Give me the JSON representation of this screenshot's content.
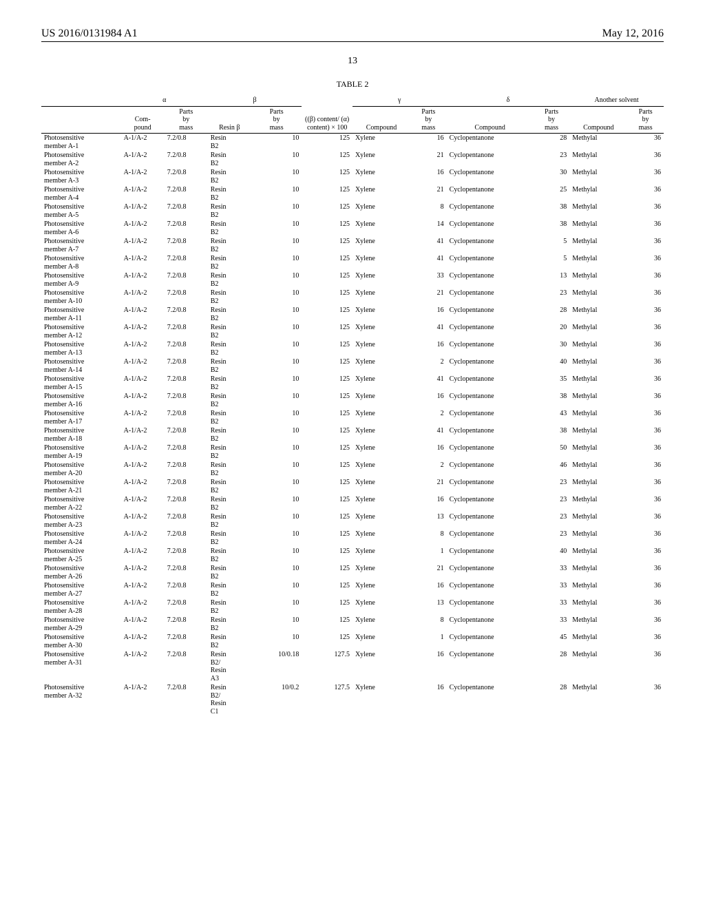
{
  "header": {
    "pub_number": "US 2016/0131984 A1",
    "pub_date": "May 12, 2016"
  },
  "page_number": "13",
  "table": {
    "label": "TABLE 2",
    "group_headers": {
      "blank": "",
      "alpha": "α",
      "beta": "β",
      "ratio": "((β)\ncontent/\n(α)\ncontent) ×\n100",
      "gamma": "γ",
      "delta": "δ",
      "another": "Another solvent"
    },
    "sub_headers": {
      "compound_a": "Com-\npound",
      "parts_a": "Parts\nby\nmass",
      "resin_b": "Resin β",
      "parts_b": "Parts\nby\nmass",
      "compound_g": "Compound",
      "parts_g": "Parts\nby\nmass",
      "compound_d": "Compound",
      "parts_d": "Parts\nby\nmass",
      "compound_s": "Compound",
      "parts_s": "Parts\nby\nmass"
    },
    "rows": [
      {
        "label": "Photosensitive\nmember A-1",
        "ca": "A-1/A-2",
        "pa": "7.2/0.8",
        "rb": "Resin\nB2",
        "pb": "10",
        "ratio": "125",
        "cg": "Xylene",
        "pg": "16",
        "cd": "Cyclopentanone",
        "pd": "28",
        "cs": "Methylal",
        "ps": "36"
      },
      {
        "label": "Photosensitive\nmember A-2",
        "ca": "A-1/A-2",
        "pa": "7.2/0.8",
        "rb": "Resin\nB2",
        "pb": "10",
        "ratio": "125",
        "cg": "Xylene",
        "pg": "21",
        "cd": "Cyclopentanone",
        "pd": "23",
        "cs": "Methylal",
        "ps": "36"
      },
      {
        "label": "Photosensitive\nmember A-3",
        "ca": "A-1/A-2",
        "pa": "7.2/0.8",
        "rb": "Resin\nB2",
        "pb": "10",
        "ratio": "125",
        "cg": "Xylene",
        "pg": "16",
        "cd": "Cyclopentanone",
        "pd": "30",
        "cs": "Methylal",
        "ps": "36"
      },
      {
        "label": "Photosensitive\nmember A-4",
        "ca": "A-1/A-2",
        "pa": "7.2/0.8",
        "rb": "Resin\nB2",
        "pb": "10",
        "ratio": "125",
        "cg": "Xylene",
        "pg": "21",
        "cd": "Cyclopentanone",
        "pd": "25",
        "cs": "Methylal",
        "ps": "36"
      },
      {
        "label": "Photosensitive\nmember A-5",
        "ca": "A-1/A-2",
        "pa": "7.2/0.8",
        "rb": "Resin\nB2",
        "pb": "10",
        "ratio": "125",
        "cg": "Xylene",
        "pg": "8",
        "cd": "Cyclopentanone",
        "pd": "38",
        "cs": "Methylal",
        "ps": "36"
      },
      {
        "label": "Photosensitive\nmember A-6",
        "ca": "A-1/A-2",
        "pa": "7.2/0.8",
        "rb": "Resin\nB2",
        "pb": "10",
        "ratio": "125",
        "cg": "Xylene",
        "pg": "14",
        "cd": "Cyclopentanone",
        "pd": "38",
        "cs": "Methylal",
        "ps": "36"
      },
      {
        "label": "Photosensitive\nmember A-7",
        "ca": "A-1/A-2",
        "pa": "7.2/0.8",
        "rb": "Resin\nB2",
        "pb": "10",
        "ratio": "125",
        "cg": "Xylene",
        "pg": "41",
        "cd": "Cyclopentanone",
        "pd": "5",
        "cs": "Methylal",
        "ps": "36"
      },
      {
        "label": "Photosensitive\nmember A-8",
        "ca": "A-1/A-2",
        "pa": "7.2/0.8",
        "rb": "Resin\nB2",
        "pb": "10",
        "ratio": "125",
        "cg": "Xylene",
        "pg": "41",
        "cd": "Cyclopentanone",
        "pd": "5",
        "cs": "Methylal",
        "ps": "36"
      },
      {
        "label": "Photosensitive\nmember A-9",
        "ca": "A-1/A-2",
        "pa": "7.2/0.8",
        "rb": "Resin\nB2",
        "pb": "10",
        "ratio": "125",
        "cg": "Xylene",
        "pg": "33",
        "cd": "Cyclopentanone",
        "pd": "13",
        "cs": "Methylal",
        "ps": "36"
      },
      {
        "label": "Photosensitive\nmember A-10",
        "ca": "A-1/A-2",
        "pa": "7.2/0.8",
        "rb": "Resin\nB2",
        "pb": "10",
        "ratio": "125",
        "cg": "Xylene",
        "pg": "21",
        "cd": "Cyclopentanone",
        "pd": "23",
        "cs": "Methylal",
        "ps": "36"
      },
      {
        "label": "Photosensitive\nmember A-11",
        "ca": "A-1/A-2",
        "pa": "7.2/0.8",
        "rb": "Resin\nB2",
        "pb": "10",
        "ratio": "125",
        "cg": "Xylene",
        "pg": "16",
        "cd": "Cyclopentanone",
        "pd": "28",
        "cs": "Methylal",
        "ps": "36"
      },
      {
        "label": "Photosensitive\nmember A-12",
        "ca": "A-1/A-2",
        "pa": "7.2/0.8",
        "rb": "Resin\nB2",
        "pb": "10",
        "ratio": "125",
        "cg": "Xylene",
        "pg": "41",
        "cd": "Cyclopentanone",
        "pd": "20",
        "cs": "Methylal",
        "ps": "36"
      },
      {
        "label": "Photosensitive\nmember A-13",
        "ca": "A-1/A-2",
        "pa": "7.2/0.8",
        "rb": "Resin\nB2",
        "pb": "10",
        "ratio": "125",
        "cg": "Xylene",
        "pg": "16",
        "cd": "Cyclopentanone",
        "pd": "30",
        "cs": "Methylal",
        "ps": "36"
      },
      {
        "label": "Photosensitive\nmember A-14",
        "ca": "A-1/A-2",
        "pa": "7.2/0.8",
        "rb": "Resin\nB2",
        "pb": "10",
        "ratio": "125",
        "cg": "Xylene",
        "pg": "2",
        "cd": "Cyclopentanone",
        "pd": "40",
        "cs": "Methylal",
        "ps": "36"
      },
      {
        "label": "Photosensitive\nmember A-15",
        "ca": "A-1/A-2",
        "pa": "7.2/0.8",
        "rb": "Resin\nB2",
        "pb": "10",
        "ratio": "125",
        "cg": "Xylene",
        "pg": "41",
        "cd": "Cyclopentanone",
        "pd": "35",
        "cs": "Methylal",
        "ps": "36"
      },
      {
        "label": "Photosensitive\nmember A-16",
        "ca": "A-1/A-2",
        "pa": "7.2/0.8",
        "rb": "Resin\nB2",
        "pb": "10",
        "ratio": "125",
        "cg": "Xylene",
        "pg": "16",
        "cd": "Cyclopentanone",
        "pd": "38",
        "cs": "Methylal",
        "ps": "36"
      },
      {
        "label": "Photosensitive\nmember A-17",
        "ca": "A-1/A-2",
        "pa": "7.2/0.8",
        "rb": "Resin\nB2",
        "pb": "10",
        "ratio": "125",
        "cg": "Xylene",
        "pg": "2",
        "cd": "Cyclopentanone",
        "pd": "43",
        "cs": "Methylal",
        "ps": "36"
      },
      {
        "label": "Photosensitive\nmember A-18",
        "ca": "A-1/A-2",
        "pa": "7.2/0.8",
        "rb": "Resin\nB2",
        "pb": "10",
        "ratio": "125",
        "cg": "Xylene",
        "pg": "41",
        "cd": "Cyclopentanone",
        "pd": "38",
        "cs": "Methylal",
        "ps": "36"
      },
      {
        "label": "Photosensitive\nmember A-19",
        "ca": "A-1/A-2",
        "pa": "7.2/0.8",
        "rb": "Resin\nB2",
        "pb": "10",
        "ratio": "125",
        "cg": "Xylene",
        "pg": "16",
        "cd": "Cyclopentanone",
        "pd": "50",
        "cs": "Methylal",
        "ps": "36"
      },
      {
        "label": "Photosensitive\nmember A-20",
        "ca": "A-1/A-2",
        "pa": "7.2/0.8",
        "rb": "Resin\nB2",
        "pb": "10",
        "ratio": "125",
        "cg": "Xylene",
        "pg": "2",
        "cd": "Cyclopentanone",
        "pd": "46",
        "cs": "Methylal",
        "ps": "36"
      },
      {
        "label": "Photosensitive\nmember A-21",
        "ca": "A-1/A-2",
        "pa": "7.2/0.8",
        "rb": "Resin\nB2",
        "pb": "10",
        "ratio": "125",
        "cg": "Xylene",
        "pg": "21",
        "cd": "Cyclopentanone",
        "pd": "23",
        "cs": "Methylal",
        "ps": "36"
      },
      {
        "label": "Photosensitive\nmember A-22",
        "ca": "A-1/A-2",
        "pa": "7.2/0.8",
        "rb": "Resin\nB2",
        "pb": "10",
        "ratio": "125",
        "cg": "Xylene",
        "pg": "16",
        "cd": "Cyclopentanone",
        "pd": "23",
        "cs": "Methylal",
        "ps": "36"
      },
      {
        "label": "Photosensitive\nmember A-23",
        "ca": "A-1/A-2",
        "pa": "7.2/0.8",
        "rb": "Resin\nB2",
        "pb": "10",
        "ratio": "125",
        "cg": "Xylene",
        "pg": "13",
        "cd": "Cyclopentanone",
        "pd": "23",
        "cs": "Methylal",
        "ps": "36"
      },
      {
        "label": "Photosensitive\nmember A-24",
        "ca": "A-1/A-2",
        "pa": "7.2/0.8",
        "rb": "Resin\nB2",
        "pb": "10",
        "ratio": "125",
        "cg": "Xylene",
        "pg": "8",
        "cd": "Cyclopentanone",
        "pd": "23",
        "cs": "Methylal",
        "ps": "36"
      },
      {
        "label": "Photosensitive\nmember A-25",
        "ca": "A-1/A-2",
        "pa": "7.2/0.8",
        "rb": "Resin\nB2",
        "pb": "10",
        "ratio": "125",
        "cg": "Xylene",
        "pg": "1",
        "cd": "Cyclopentanone",
        "pd": "40",
        "cs": "Methylal",
        "ps": "36"
      },
      {
        "label": "Photosensitive\nmember A-26",
        "ca": "A-1/A-2",
        "pa": "7.2/0.8",
        "rb": "Resin\nB2",
        "pb": "10",
        "ratio": "125",
        "cg": "Xylene",
        "pg": "21",
        "cd": "Cyclopentanone",
        "pd": "33",
        "cs": "Methylal",
        "ps": "36"
      },
      {
        "label": "Photosensitive\nmember A-27",
        "ca": "A-1/A-2",
        "pa": "7.2/0.8",
        "rb": "Resin\nB2",
        "pb": "10",
        "ratio": "125",
        "cg": "Xylene",
        "pg": "16",
        "cd": "Cyclopentanone",
        "pd": "33",
        "cs": "Methylal",
        "ps": "36"
      },
      {
        "label": "Photosensitive\nmember A-28",
        "ca": "A-1/A-2",
        "pa": "7.2/0.8",
        "rb": "Resin\nB2",
        "pb": "10",
        "ratio": "125",
        "cg": "Xylene",
        "pg": "13",
        "cd": "Cyclopentanone",
        "pd": "33",
        "cs": "Methylal",
        "ps": "36"
      },
      {
        "label": "Photosensitive\nmember A-29",
        "ca": "A-1/A-2",
        "pa": "7.2/0.8",
        "rb": "Resin\nB2",
        "pb": "10",
        "ratio": "125",
        "cg": "Xylene",
        "pg": "8",
        "cd": "Cyclopentanone",
        "pd": "33",
        "cs": "Methylal",
        "ps": "36"
      },
      {
        "label": "Photosensitive\nmember A-30",
        "ca": "A-1/A-2",
        "pa": "7.2/0.8",
        "rb": "Resin\nB2",
        "pb": "10",
        "ratio": "125",
        "cg": "Xylene",
        "pg": "1",
        "cd": "Cyclopentanone",
        "pd": "45",
        "cs": "Methylal",
        "ps": "36"
      },
      {
        "label": "Photosensitive\nmember A-31",
        "ca": "A-1/A-2",
        "pa": "7.2/0.8",
        "rb": "Resin\nB2/\nResin\nA3",
        "pb": "10/0.18",
        "ratio": "127.5",
        "cg": "Xylene",
        "pg": "16",
        "cd": "Cyclopentanone",
        "pd": "28",
        "cs": "Methylal",
        "ps": "36"
      },
      {
        "label": "Photosensitive\nmember A-32",
        "ca": "A-1/A-2",
        "pa": "7.2/0.8",
        "rb": "Resin\nB2/\nResin\nC1",
        "pb": "10/0.2",
        "ratio": "127.5",
        "cg": "Xylene",
        "pg": "16",
        "cd": "Cyclopentanone",
        "pd": "28",
        "cs": "Methylal",
        "ps": "36"
      }
    ]
  }
}
